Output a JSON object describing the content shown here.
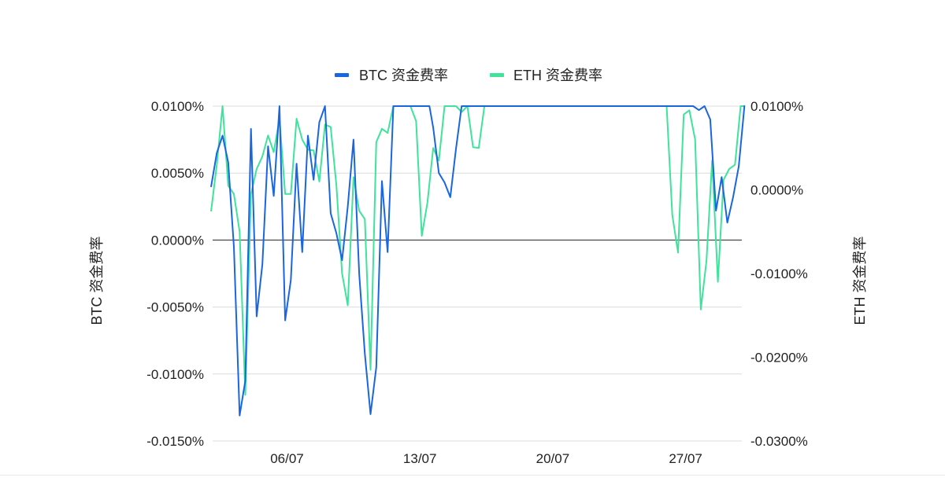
{
  "chart_data": {
    "type": "line",
    "title": "",
    "grid": true,
    "legend_position": "top-center",
    "x_axis": {
      "unit": "day",
      "range": [
        "2024-07-01",
        "2024-07-29"
      ],
      "tick_labels": [
        "06/07",
        "13/07",
        "20/07",
        "27/07"
      ],
      "tick_values": [
        "2024-07-06",
        "2024-07-13",
        "2024-07-20",
        "2024-07-27"
      ]
    },
    "y_left": {
      "label": "BTC 资金费率",
      "range": [
        -0.015,
        0.01
      ],
      "unit": "%",
      "tick_values": [
        0.01,
        0.005,
        0.0,
        -0.005,
        -0.01,
        -0.015
      ],
      "tick_labels": [
        "0.0100%",
        "0.0050%",
        "0.0000%",
        "-0.0050%",
        "-0.0100%",
        "-0.0150%"
      ]
    },
    "y_right": {
      "label": "ETH 资金费率",
      "range": [
        -0.03,
        0.01
      ],
      "unit": "%",
      "tick_values": [
        0.01,
        0.0,
        -0.01,
        -0.02,
        -0.03
      ],
      "tick_labels": [
        "0.0100%",
        "0.0000%",
        "-0.0100%",
        "-0.0200%",
        "-0.0300%"
      ]
    },
    "series": [
      {
        "name": "BTC 资金费率",
        "axis": "left",
        "color": "#1a66e0",
        "values": [
          [
            0.0,
            0.004
          ],
          [
            0.3,
            0.0065
          ],
          [
            0.6,
            0.0078
          ],
          [
            0.9,
            0.0058
          ],
          [
            1.2,
            -0.0005
          ],
          [
            1.5,
            -0.0131
          ],
          [
            1.8,
            -0.0105
          ],
          [
            2.1,
            0.0083
          ],
          [
            2.4,
            -0.0057
          ],
          [
            2.7,
            -0.0018
          ],
          [
            3.0,
            0.007
          ],
          [
            3.3,
            0.0033
          ],
          [
            3.6,
            0.01
          ],
          [
            3.9,
            -0.006
          ],
          [
            4.2,
            -0.003
          ],
          [
            4.5,
            0.0057
          ],
          [
            4.8,
            -0.0009
          ],
          [
            5.1,
            0.0078
          ],
          [
            5.4,
            0.0045
          ],
          [
            5.7,
            0.0088
          ],
          [
            6.0,
            0.01
          ],
          [
            6.3,
            0.002
          ],
          [
            6.6,
            0.0005
          ],
          [
            6.9,
            -0.0015
          ],
          [
            7.2,
            0.0025
          ],
          [
            7.5,
            0.0075
          ],
          [
            7.8,
            -0.0025
          ],
          [
            8.1,
            -0.0085
          ],
          [
            8.4,
            -0.013
          ],
          [
            8.7,
            -0.0095
          ],
          [
            9.0,
            0.0044
          ],
          [
            9.3,
            -0.0009
          ],
          [
            9.6,
            0.01
          ],
          [
            9.9,
            0.01
          ],
          [
            10.5,
            0.01
          ],
          [
            11.1,
            0.01
          ],
          [
            11.5,
            0.01
          ],
          [
            11.7,
            0.0084
          ],
          [
            12.0,
            0.005
          ],
          [
            12.3,
            0.0043
          ],
          [
            12.6,
            0.0032
          ],
          [
            12.9,
            0.0068
          ],
          [
            13.2,
            0.01
          ],
          [
            13.6,
            0.01
          ],
          [
            14.0,
            0.01
          ],
          [
            15.0,
            0.01
          ],
          [
            16.0,
            0.01
          ],
          [
            17.0,
            0.01
          ],
          [
            18.0,
            0.01
          ],
          [
            19.0,
            0.01
          ],
          [
            20.0,
            0.01
          ],
          [
            21.0,
            0.01
          ],
          [
            22.0,
            0.01
          ],
          [
            23.0,
            0.01
          ],
          [
            24.0,
            0.01
          ],
          [
            25.0,
            0.01
          ],
          [
            25.4,
            0.01
          ],
          [
            25.7,
            0.0097
          ],
          [
            26.0,
            0.01
          ],
          [
            26.3,
            0.009
          ],
          [
            26.6,
            0.0022
          ],
          [
            26.9,
            0.0047
          ],
          [
            27.2,
            0.0013
          ],
          [
            27.5,
            0.0032
          ],
          [
            27.8,
            0.0055
          ],
          [
            28.1,
            0.01
          ]
        ]
      },
      {
        "name": "ETH 资金费率",
        "axis": "right",
        "color": "#3ee39c",
        "values": [
          [
            0.0,
            -0.0025
          ],
          [
            0.3,
            0.003
          ],
          [
            0.6,
            0.01
          ],
          [
            0.9,
            0.0005
          ],
          [
            1.2,
            -0.0005
          ],
          [
            1.5,
            -0.005
          ],
          [
            1.8,
            -0.0245
          ],
          [
            2.1,
            -0.0005
          ],
          [
            2.4,
            0.0025
          ],
          [
            2.7,
            0.004
          ],
          [
            3.0,
            0.0065
          ],
          [
            3.3,
            0.0045
          ],
          [
            3.6,
            0.0085
          ],
          [
            3.9,
            -0.0005
          ],
          [
            4.2,
            -0.0005
          ],
          [
            4.5,
            0.0085
          ],
          [
            4.8,
            0.006
          ],
          [
            5.1,
            0.0048
          ],
          [
            5.4,
            0.0047
          ],
          [
            5.7,
            0.001
          ],
          [
            6.0,
            0.0078
          ],
          [
            6.3,
            0.0075
          ],
          [
            6.6,
            0.0005
          ],
          [
            6.9,
            -0.01
          ],
          [
            7.2,
            -0.0138
          ],
          [
            7.5,
            0.0015
          ],
          [
            7.8,
            -0.0025
          ],
          [
            8.1,
            -0.0035
          ],
          [
            8.4,
            -0.0215
          ],
          [
            8.7,
            0.0057
          ],
          [
            9.0,
            0.0073
          ],
          [
            9.3,
            0.0068
          ],
          [
            9.6,
            0.01
          ],
          [
            9.9,
            0.01
          ],
          [
            10.5,
            0.01
          ],
          [
            10.8,
            0.0082
          ],
          [
            11.1,
            -0.0055
          ],
          [
            11.4,
            -0.0015
          ],
          [
            11.7,
            0.005
          ],
          [
            12.0,
            0.0035
          ],
          [
            12.3,
            0.01
          ],
          [
            12.9,
            0.01
          ],
          [
            13.2,
            0.0093
          ],
          [
            13.5,
            0.01
          ],
          [
            13.8,
            0.0051
          ],
          [
            14.1,
            0.005
          ],
          [
            14.4,
            0.01
          ],
          [
            15.0,
            0.01
          ],
          [
            16.0,
            0.01
          ],
          [
            17.0,
            0.01
          ],
          [
            18.0,
            0.01
          ],
          [
            19.0,
            0.01
          ],
          [
            20.0,
            0.01
          ],
          [
            21.0,
            0.01
          ],
          [
            22.0,
            0.01
          ],
          [
            23.0,
            0.01
          ],
          [
            24.0,
            0.01
          ],
          [
            24.3,
            -0.003
          ],
          [
            24.6,
            -0.0075
          ],
          [
            24.9,
            0.009
          ],
          [
            25.2,
            0.0095
          ],
          [
            25.5,
            0.006
          ],
          [
            25.8,
            -0.0143
          ],
          [
            26.1,
            -0.0085
          ],
          [
            26.4,
            0.0035
          ],
          [
            26.7,
            -0.011
          ],
          [
            27.0,
            0.0012
          ],
          [
            27.3,
            0.0025
          ],
          [
            27.6,
            0.003
          ],
          [
            27.9,
            0.01
          ],
          [
            28.1,
            0.01
          ]
        ]
      }
    ]
  }
}
